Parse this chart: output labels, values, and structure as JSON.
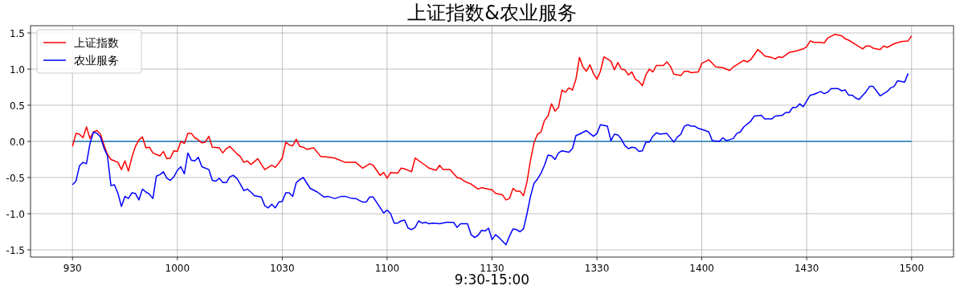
{
  "chart_data": {
    "type": "line",
    "title": "上证指数&农业服务",
    "xlabel": "9:30-15:00",
    "ylim": [
      -1.6,
      1.6
    ],
    "categories": [
      "930",
      null,
      null,
      null,
      null,
      null,
      null,
      null,
      null,
      null,
      null,
      null,
      null,
      null,
      null,
      null,
      null,
      null,
      null,
      null,
      null,
      null,
      null,
      null,
      null,
      null,
      null,
      null,
      null,
      null,
      "1000",
      null,
      null,
      null,
      null,
      null,
      null,
      null,
      null,
      null,
      null,
      null,
      null,
      null,
      null,
      null,
      null,
      null,
      null,
      null,
      null,
      null,
      null,
      null,
      null,
      null,
      null,
      null,
      null,
      null,
      "1030",
      null,
      null,
      null,
      null,
      null,
      null,
      null,
      null,
      null,
      null,
      null,
      null,
      null,
      null,
      null,
      null,
      null,
      null,
      null,
      null,
      null,
      null,
      null,
      null,
      null,
      null,
      null,
      null,
      null,
      "1100",
      null,
      null,
      null,
      null,
      null,
      null,
      null,
      null,
      null,
      null,
      null,
      null,
      null,
      null,
      null,
      null,
      null,
      null,
      null,
      null,
      null,
      null,
      null,
      null,
      null,
      null,
      null,
      null,
      null,
      "1130",
      null,
      null,
      null,
      null,
      null,
      null,
      null,
      null,
      null,
      null,
      null,
      null,
      null,
      null,
      null,
      null,
      null,
      null,
      null,
      null,
      null,
      null,
      null,
      null,
      null,
      null,
      null,
      null,
      null,
      "1330",
      null,
      null,
      null,
      null,
      null,
      null,
      null,
      null,
      null,
      null,
      null,
      null,
      null,
      null,
      null,
      null,
      null,
      null,
      null,
      null,
      null,
      null,
      null,
      null,
      null,
      null,
      null,
      null,
      null,
      "1400",
      null,
      null,
      null,
      null,
      null,
      null,
      null,
      null,
      null,
      null,
      null,
      null,
      null,
      null,
      null,
      null,
      null,
      null,
      null,
      null,
      null,
      null,
      null,
      null,
      null,
      null,
      null,
      null,
      null,
      "1430",
      null,
      null,
      null,
      null,
      null,
      null,
      null,
      null,
      null,
      null,
      null,
      null,
      null,
      null,
      null,
      null,
      null,
      null,
      null,
      null,
      null,
      null,
      null,
      null,
      null,
      null,
      null,
      null,
      null,
      "1500"
    ],
    "yticks": [
      {
        "value": -1.5,
        "label": "-1.5"
      },
      {
        "value": -1,
        "label": "-1.0"
      },
      {
        "value": -0.5,
        "label": "-0.5"
      },
      {
        "value": 0,
        "label": "0.0"
      },
      {
        "value": 0.5,
        "label": "0.5"
      },
      {
        "value": 1,
        "label": "1.0"
      },
      {
        "value": 1.5,
        "label": "1.5"
      }
    ],
    "grid": true,
    "legend": "top left",
    "ref_lines": [
      {
        "axis": "y",
        "value": 0,
        "color": "#1f77b4"
      }
    ],
    "series": [
      {
        "name": "上证指数",
        "color": "#ff0000",
        "values": [
          -0.07,
          0.11,
          0.1,
          0.05,
          0.2,
          0.04,
          0.13,
          0.15,
          0.1,
          -0.05,
          -0.18,
          -0.25,
          -0.27,
          -0.29,
          -0.39,
          -0.27,
          -0.41,
          -0.22,
          -0.07,
          0.02,
          0.06,
          -0.09,
          -0.08,
          -0.16,
          null,
          -0.2,
          -0.14,
          -0.24,
          -0.23,
          -0.13,
          -0.14,
          0.0,
          -0.03,
          0.11,
          0.11,
          0.05,
          0.02,
          -0.02,
          -0.01,
          0.07,
          -0.08,
          null,
          -0.09,
          -0.16,
          -0.1,
          -0.07,
          null,
          -0.17,
          -0.21,
          -0.29,
          -0.27,
          -0.32,
          null,
          -0.24,
          null,
          -0.39,
          -0.36,
          -0.33,
          -0.36,
          -0.3,
          -0.23,
          -0.01,
          -0.05,
          -0.06,
          0.03,
          -0.07,
          -0.08,
          -0.11,
          null,
          -0.09,
          null,
          -0.21,
          -0.21,
          null,
          null,
          -0.23,
          null,
          null,
          -0.29,
          null,
          -0.29,
          -0.29,
          null,
          -0.37,
          null,
          -0.31,
          -0.33,
          null,
          -0.47,
          -0.43,
          -0.51,
          -0.43,
          null,
          -0.44,
          -0.37,
          -0.38,
          null,
          -0.42,
          -0.23,
          null,
          -0.3,
          null,
          -0.37,
          null,
          -0.4,
          -0.33,
          -0.39,
          null,
          -0.39,
          null,
          -0.5,
          -0.51,
          -0.55,
          null,
          -0.59,
          null,
          -0.66,
          -0.64,
          null,
          -0.66,
          -0.67,
          -0.72,
          null,
          -0.74,
          -0.81,
          -0.79,
          -0.65,
          -0.69,
          -0.69,
          -0.75,
          -0.56,
          -0.26,
          -0.02,
          0.1,
          0.13,
          0.29,
          0.35,
          0.52,
          0.42,
          0.47,
          0.71,
          0.68,
          0.74,
          0.71,
          0.86,
          1.16,
          1.03,
          0.97,
          1.06,
          0.94,
          0.86,
          0.97,
          1.17,
          1.14,
          1.11,
          0.99,
          1.09,
          1.0,
          0.99,
          0.92,
          0.96,
          0.86,
          0.83,
          0.77,
          0.92,
          1.0,
          0.96,
          1.05,
          null,
          1.05,
          1.1,
          1.04,
          0.93,
          null,
          0.91,
          0.97,
          0.97,
          0.95,
          null,
          0.96,
          1.08,
          null,
          1.13,
          1.08,
          1.03,
          null,
          1.02,
          null,
          0.98,
          1.03,
          1.06,
          null,
          1.12,
          1.1,
          1.13,
          null,
          1.27,
          1.23,
          1.18,
          null,
          1.16,
          1.14,
          1.17,
          1.16,
          null,
          1.23,
          null,
          1.25,
          null,
          1.28,
          1.31,
          1.39,
          1.37,
          null,
          1.37,
          1.36,
          1.43,
          null,
          1.48,
          null,
          1.46,
          1.42,
          1.4,
          null,
          1.34,
          null,
          1.28,
          1.32,
          1.32,
          1.29,
          null,
          1.27,
          1.32,
          1.3,
          null,
          1.35,
          null,
          1.38,
          null,
          1.39,
          1.46
        ]
      },
      {
        "name": "农业服务",
        "color": "#0000ff",
        "values": [
          -0.6,
          -0.55,
          -0.34,
          -0.29,
          -0.31,
          -0.03,
          0.13,
          0.11,
          0.06,
          -0.09,
          -0.2,
          -0.61,
          -0.6,
          -0.72,
          -0.9,
          -0.76,
          -0.79,
          -0.71,
          -0.72,
          -0.81,
          -0.66,
          -0.7,
          -0.73,
          -0.79,
          -0.48,
          -0.46,
          -0.42,
          -0.51,
          -0.54,
          -0.49,
          -0.4,
          -0.35,
          -0.45,
          -0.16,
          -0.26,
          -0.27,
          -0.22,
          -0.35,
          null,
          -0.39,
          -0.54,
          -0.55,
          -0.51,
          -0.57,
          -0.57,
          -0.49,
          -0.47,
          -0.51,
          -0.59,
          -0.68,
          -0.66,
          -0.7,
          -0.75,
          null,
          -0.77,
          -0.89,
          -0.92,
          -0.87,
          -0.92,
          -0.84,
          -0.83,
          -0.71,
          -0.71,
          -0.76,
          -0.57,
          -0.53,
          -0.5,
          null,
          -0.65,
          null,
          -0.7,
          null,
          -0.77,
          -0.76,
          null,
          -0.79,
          null,
          -0.76,
          -0.76,
          null,
          -0.79,
          -0.79,
          null,
          -0.84,
          -0.84,
          -0.77,
          -0.77,
          null,
          null,
          -0.99,
          -0.95,
          -1.0,
          -1.13,
          -1.13,
          -1.1,
          -1.09,
          -1.2,
          -1.22,
          -1.19,
          -1.1,
          -1.13,
          -1.12,
          -1.14,
          -1.13,
          null,
          -1.14,
          null,
          -1.12,
          null,
          -1.12,
          -1.19,
          -1.14,
          null,
          -1.14,
          -1.29,
          -1.33,
          -1.3,
          -1.23,
          -1.24,
          -1.2,
          -1.36,
          -1.29,
          -1.33,
          null,
          -1.43,
          -1.31,
          -1.21,
          -1.22,
          -1.25,
          -1.21,
          -1.0,
          -0.76,
          -0.58,
          -0.52,
          -0.44,
          -0.33,
          -0.19,
          -0.2,
          -0.25,
          -0.16,
          -0.13,
          null,
          -0.15,
          -0.1,
          0.08,
          0.1,
          null,
          0.15,
          0.11,
          0.07,
          0.11,
          0.23,
          null,
          0.21,
          0.01,
          0.1,
          0.09,
          0.03,
          -0.06,
          -0.1,
          -0.08,
          -0.09,
          -0.14,
          -0.13,
          -0.01,
          -0.01,
          0.07,
          0.12,
          0.1,
          null,
          0.11,
          null,
          -0.01,
          0.06,
          0.1,
          0.21,
          0.23,
          0.21,
          0.21,
          0.18,
          null,
          0.15,
          0.13,
          0.01,
          null,
          0.0,
          0.05,
          0.01,
          null,
          0.04,
          0.11,
          0.13,
          0.2,
          null,
          0.28,
          0.35,
          null,
          0.36,
          0.31,
          null,
          0.31,
          0.35,
          null,
          0.36,
          0.4,
          0.4,
          0.47,
          0.47,
          0.52,
          0.48,
          null,
          0.64,
          0.65,
          null,
          0.69,
          0.66,
          0.68,
          0.73,
          null,
          0.73,
          0.7,
          0.71,
          0.64,
          0.64,
          0.6,
          0.58,
          null,
          0.69,
          0.76,
          0.76,
          null,
          0.63,
          null,
          0.69,
          0.74,
          0.76,
          0.84,
          null,
          0.82,
          0.94,
          null
        ]
      }
    ]
  }
}
